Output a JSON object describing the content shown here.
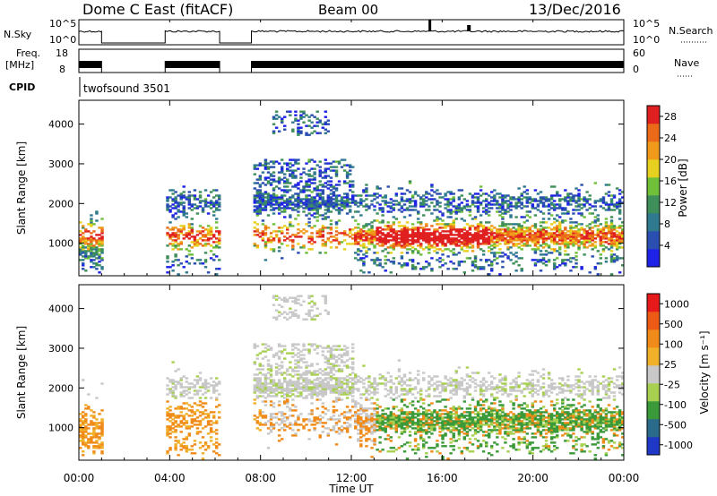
{
  "header": {
    "title": "Dome C East (fitACF)",
    "beam": "Beam 00",
    "date": "13/Dec/2016"
  },
  "nsky": {
    "label": "N.Sky",
    "right_label": "N.Search",
    "tick_top": "10^5",
    "tick_bottom": "10^0",
    "right_tick_top": "10^5",
    "right_tick_bottom": "10^0"
  },
  "freq": {
    "label1": "Freq.",
    "label2": "[MHz]",
    "tick_top": "18",
    "tick_bottom": "8",
    "right_label": "Nave",
    "right_tick_top": "60",
    "right_tick_bottom": "0"
  },
  "cpid": {
    "label": "CPID",
    "value": "twofsound 3501"
  },
  "x_axis": {
    "label": "Time UT",
    "ticks": [
      "00:00",
      "04:00",
      "08:00",
      "12:00",
      "16:00",
      "20:00",
      "00:00"
    ]
  },
  "colors": {
    "power": [
      "#1e22e6",
      "#2a4fb0",
      "#2f7a8e",
      "#3f8f5a",
      "#6fbf3a",
      "#e8d020",
      "#f09a1c",
      "#ea6a1a",
      "#e02020"
    ],
    "velocity": [
      "#e61a1a",
      "#ec5a16",
      "#f08a18",
      "#f0b02a",
      "#c8c8c8",
      "#a8d050",
      "#3a9a3a",
      "#2a6a8a",
      "#2038c8"
    ]
  },
  "chart_data": [
    {
      "type": "heatmap",
      "panel": "power",
      "ylabel": "Slant Range [km]",
      "xlabel": "Time UT",
      "x_range": [
        "00:00",
        "24:00"
      ],
      "ylim": [
        180,
        4600
      ],
      "y_ticks": [
        1000,
        2000,
        3000,
        4000
      ],
      "colorbar": {
        "label": "Power [dB]",
        "ticks": [
          4,
          8,
          12,
          16,
          20,
          24,
          28
        ],
        "range": [
          0,
          30
        ]
      }
    },
    {
      "type": "heatmap",
      "panel": "velocity",
      "ylabel": "Slant Range [km]",
      "xlabel": "Time UT",
      "x_range": [
        "00:00",
        "24:00"
      ],
      "ylim": [
        180,
        4600
      ],
      "y_ticks": [
        1000,
        2000,
        3000,
        4000
      ],
      "colorbar": {
        "label": "Velocity [m s⁻¹]",
        "ticks": [
          1000,
          500,
          100,
          25,
          -25,
          -100,
          -500,
          -1000
        ]
      }
    }
  ]
}
